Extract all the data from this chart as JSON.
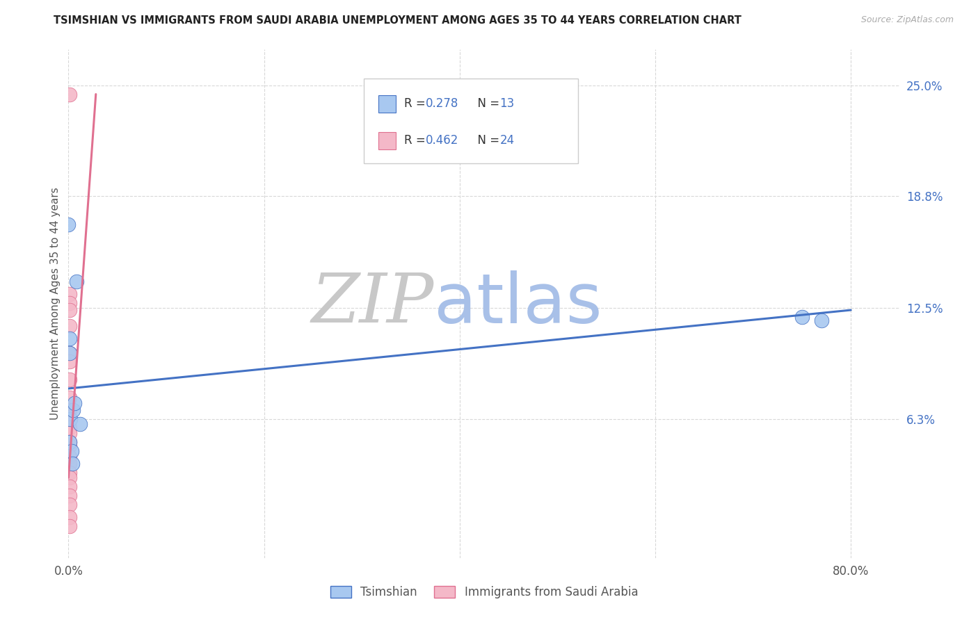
{
  "title": "TSIMSHIAN VS IMMIGRANTS FROM SAUDI ARABIA UNEMPLOYMENT AMONG AGES 35 TO 44 YEARS CORRELATION CHART",
  "source": "Source: ZipAtlas.com",
  "ylabel": "Unemployment Among Ages 35 to 44 years",
  "legend_label1": "Tsimshian",
  "legend_label2": "Immigrants from Saudi Arabia",
  "R1": "0.278",
  "N1": "13",
  "R2": "0.462",
  "N2": "24",
  "color_blue": "#a8c8f0",
  "color_pink": "#f4b8c8",
  "color_line_blue": "#4472c4",
  "color_line_pink": "#e07090",
  "color_r_value": "#4472c4",
  "watermark_zip": "#c8c8c8",
  "watermark_atlas": "#a8c0e8",
  "xlim": [
    0.0,
    0.85
  ],
  "ylim": [
    -0.015,
    0.27
  ],
  "tsimshian_x": [
    0.0,
    0.001,
    0.008,
    0.001,
    0.002,
    0.005,
    0.001,
    0.003,
    0.004,
    0.006,
    0.75,
    0.77,
    0.012
  ],
  "tsimshian_y": [
    0.172,
    0.108,
    0.14,
    0.1,
    0.063,
    0.068,
    0.05,
    0.045,
    0.038,
    0.072,
    0.12,
    0.118,
    0.06
  ],
  "saudi_x": [
    0.001,
    0.001,
    0.001,
    0.001,
    0.001,
    0.001,
    0.001,
    0.001,
    0.001,
    0.001,
    0.001,
    0.001,
    0.001,
    0.001,
    0.001,
    0.001,
    0.001,
    0.001,
    0.001,
    0.001,
    0.001,
    0.001,
    0.001,
    0.001
  ],
  "saudi_y": [
    0.245,
    0.133,
    0.128,
    0.124,
    0.115,
    0.1,
    0.095,
    0.085,
    0.075,
    0.068,
    0.064,
    0.058,
    0.055,
    0.05,
    0.048,
    0.042,
    0.038,
    0.033,
    0.03,
    0.025,
    0.02,
    0.015,
    0.008,
    0.003
  ],
  "blue_trendline_x": [
    0.0,
    0.8
  ],
  "blue_trendline_y": [
    0.08,
    0.124
  ],
  "pink_trendline_x": [
    0.0,
    0.028
  ],
  "pink_trendline_y": [
    0.03,
    0.245
  ],
  "y_tick_vals": [
    0.25,
    0.188,
    0.125,
    0.063
  ],
  "y_tick_labels": [
    "25.0%",
    "18.8%",
    "12.5%",
    "6.3%"
  ],
  "x_tick_vals": [
    0.0,
    0.2,
    0.4,
    0.6,
    0.8
  ],
  "grid_color": "#d8d8d8"
}
